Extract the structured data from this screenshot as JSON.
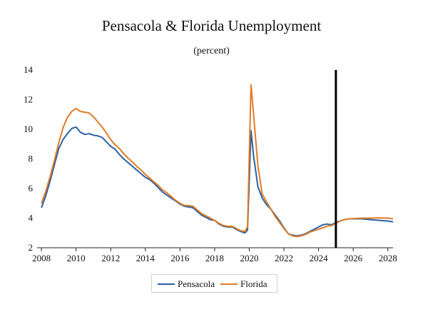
{
  "chart_data": {
    "type": "line",
    "title": "Pensacola & Florida Unemployment",
    "subtitle": "(percent)",
    "xlabel": "",
    "ylabel": "",
    "xlim": [
      2007.75,
      2028.3
    ],
    "ylim": [
      2,
      14
    ],
    "x_ticks": [
      2008,
      2010,
      2012,
      2014,
      2016,
      2018,
      2020,
      2022,
      2024,
      2026,
      2028
    ],
    "y_ticks": [
      2,
      4,
      6,
      8,
      10,
      12,
      14
    ],
    "grid": false,
    "legend_position": "bottom-center",
    "vertical_marker_x": 2025.0,
    "series": [
      {
        "name": "Pensacola",
        "color": "#2e5fa3",
        "points": [
          [
            2008.0,
            4.7
          ],
          [
            2008.25,
            5.5
          ],
          [
            2008.5,
            6.5
          ],
          [
            2008.75,
            7.6
          ],
          [
            2009.0,
            8.7
          ],
          [
            2009.25,
            9.3
          ],
          [
            2009.5,
            9.7
          ],
          [
            2009.75,
            10.05
          ],
          [
            2010.0,
            10.15
          ],
          [
            2010.25,
            9.8
          ],
          [
            2010.5,
            9.65
          ],
          [
            2010.75,
            9.7
          ],
          [
            2011.0,
            9.6
          ],
          [
            2011.25,
            9.55
          ],
          [
            2011.5,
            9.45
          ],
          [
            2011.75,
            9.15
          ],
          [
            2012.0,
            8.85
          ],
          [
            2012.25,
            8.65
          ],
          [
            2012.5,
            8.3
          ],
          [
            2012.75,
            8.0
          ],
          [
            2013.0,
            7.75
          ],
          [
            2013.25,
            7.5
          ],
          [
            2013.5,
            7.25
          ],
          [
            2013.75,
            7.0
          ],
          [
            2014.0,
            6.75
          ],
          [
            2014.25,
            6.6
          ],
          [
            2014.5,
            6.35
          ],
          [
            2014.75,
            6.05
          ],
          [
            2015.0,
            5.75
          ],
          [
            2015.25,
            5.55
          ],
          [
            2015.5,
            5.35
          ],
          [
            2015.75,
            5.15
          ],
          [
            2016.0,
            4.95
          ],
          [
            2016.25,
            4.8
          ],
          [
            2016.5,
            4.75
          ],
          [
            2016.75,
            4.7
          ],
          [
            2017.0,
            4.45
          ],
          [
            2017.25,
            4.2
          ],
          [
            2017.5,
            4.05
          ],
          [
            2017.75,
            3.9
          ],
          [
            2018.0,
            3.85
          ],
          [
            2018.25,
            3.6
          ],
          [
            2018.5,
            3.45
          ],
          [
            2018.75,
            3.4
          ],
          [
            2019.0,
            3.4
          ],
          [
            2019.25,
            3.25
          ],
          [
            2019.5,
            3.1
          ],
          [
            2019.75,
            3.0
          ],
          [
            2019.9,
            3.2
          ],
          [
            2020.1,
            9.9
          ],
          [
            2020.25,
            8.2
          ],
          [
            2020.5,
            6.1
          ],
          [
            2020.75,
            5.35
          ],
          [
            2021.0,
            4.9
          ],
          [
            2021.25,
            4.6
          ],
          [
            2021.5,
            4.2
          ],
          [
            2021.75,
            3.8
          ],
          [
            2022.0,
            3.35
          ],
          [
            2022.25,
            2.95
          ],
          [
            2022.5,
            2.85
          ],
          [
            2022.75,
            2.8
          ],
          [
            2023.0,
            2.85
          ],
          [
            2023.25,
            2.95
          ],
          [
            2023.5,
            3.1
          ],
          [
            2023.75,
            3.25
          ],
          [
            2024.0,
            3.4
          ],
          [
            2024.25,
            3.55
          ],
          [
            2024.5,
            3.6
          ],
          [
            2024.75,
            3.55
          ],
          [
            2025.0,
            3.7
          ],
          [
            2025.25,
            3.8
          ],
          [
            2025.5,
            3.9
          ],
          [
            2025.75,
            3.95
          ],
          [
            2026.0,
            3.95
          ],
          [
            2026.5,
            3.95
          ],
          [
            2027.0,
            3.9
          ],
          [
            2027.5,
            3.85
          ],
          [
            2028.0,
            3.8
          ],
          [
            2028.3,
            3.75
          ]
        ]
      },
      {
        "name": "Florida",
        "color": "#e07b27",
        "points": [
          [
            2008.0,
            5.0
          ],
          [
            2008.25,
            5.8
          ],
          [
            2008.5,
            6.8
          ],
          [
            2008.75,
            7.9
          ],
          [
            2009.0,
            9.1
          ],
          [
            2009.25,
            10.1
          ],
          [
            2009.5,
            10.8
          ],
          [
            2009.75,
            11.2
          ],
          [
            2010.0,
            11.4
          ],
          [
            2010.25,
            11.2
          ],
          [
            2010.5,
            11.15
          ],
          [
            2010.75,
            11.1
          ],
          [
            2011.0,
            10.85
          ],
          [
            2011.25,
            10.5
          ],
          [
            2011.5,
            10.15
          ],
          [
            2011.75,
            9.75
          ],
          [
            2012.0,
            9.3
          ],
          [
            2012.25,
            8.95
          ],
          [
            2012.5,
            8.7
          ],
          [
            2012.75,
            8.35
          ],
          [
            2013.0,
            8.05
          ],
          [
            2013.25,
            7.8
          ],
          [
            2013.5,
            7.5
          ],
          [
            2013.75,
            7.25
          ],
          [
            2014.0,
            6.95
          ],
          [
            2014.25,
            6.7
          ],
          [
            2014.5,
            6.45
          ],
          [
            2014.75,
            6.2
          ],
          [
            2015.0,
            5.9
          ],
          [
            2015.25,
            5.7
          ],
          [
            2015.5,
            5.45
          ],
          [
            2015.75,
            5.2
          ],
          [
            2016.0,
            5.0
          ],
          [
            2016.25,
            4.85
          ],
          [
            2016.5,
            4.85
          ],
          [
            2016.75,
            4.8
          ],
          [
            2017.0,
            4.55
          ],
          [
            2017.25,
            4.3
          ],
          [
            2017.5,
            4.15
          ],
          [
            2017.75,
            4.0
          ],
          [
            2018.0,
            3.85
          ],
          [
            2018.25,
            3.65
          ],
          [
            2018.5,
            3.5
          ],
          [
            2018.75,
            3.45
          ],
          [
            2019.0,
            3.45
          ],
          [
            2019.25,
            3.3
          ],
          [
            2019.5,
            3.15
          ],
          [
            2019.75,
            3.1
          ],
          [
            2019.9,
            3.4
          ],
          [
            2020.1,
            13.0
          ],
          [
            2020.25,
            11.0
          ],
          [
            2020.5,
            7.5
          ],
          [
            2020.75,
            5.6
          ],
          [
            2021.0,
            5.1
          ],
          [
            2021.25,
            4.6
          ],
          [
            2021.5,
            4.1
          ],
          [
            2021.75,
            3.7
          ],
          [
            2022.0,
            3.3
          ],
          [
            2022.25,
            2.95
          ],
          [
            2022.5,
            2.8
          ],
          [
            2022.75,
            2.75
          ],
          [
            2023.0,
            2.8
          ],
          [
            2023.25,
            2.9
          ],
          [
            2023.5,
            3.05
          ],
          [
            2023.75,
            3.15
          ],
          [
            2024.0,
            3.25
          ],
          [
            2024.25,
            3.35
          ],
          [
            2024.5,
            3.45
          ],
          [
            2024.75,
            3.5
          ],
          [
            2025.0,
            3.65
          ],
          [
            2025.25,
            3.8
          ],
          [
            2025.5,
            3.9
          ],
          [
            2025.75,
            3.95
          ],
          [
            2026.0,
            3.97
          ],
          [
            2026.5,
            4.0
          ],
          [
            2027.0,
            4.0
          ],
          [
            2027.5,
            4.02
          ],
          [
            2028.0,
            4.0
          ],
          [
            2028.3,
            3.95
          ]
        ]
      }
    ]
  }
}
